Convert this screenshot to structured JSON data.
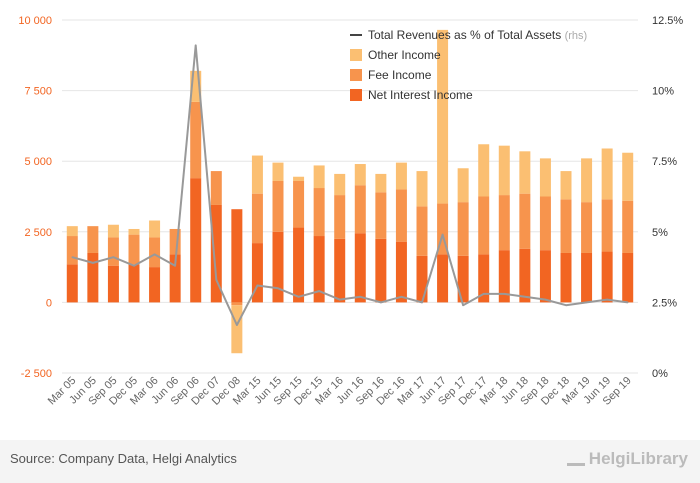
{
  "chart_data": {
    "type": "bar",
    "stacked": true,
    "categories": [
      "Mar 05",
      "Jun 05",
      "Sep 05",
      "Dec 05",
      "Mar 06",
      "Jun 06",
      "Sep 06",
      "Dec 07",
      "Dec 08",
      "Mar 15",
      "Jun 15",
      "Sep 15",
      "Dec 15",
      "Mar 16",
      "Jun 16",
      "Sep 16",
      "Dec 16",
      "Mar 17",
      "Jun 17",
      "Sep 17",
      "Dec 17",
      "Mar 18",
      "Jun 18",
      "Sep 18",
      "Dec 18",
      "Mar 19",
      "Jun 19",
      "Sep 19"
    ],
    "series": [
      {
        "name": "Net Interest Income",
        "color": "#f26522",
        "values": [
          1350,
          1750,
          1300,
          1350,
          1250,
          1700,
          4400,
          3450,
          3300,
          2100,
          2500,
          2650,
          2350,
          2250,
          2450,
          2250,
          2150,
          1650,
          1700,
          1650,
          1700,
          1850,
          1900,
          1850,
          1750,
          1750,
          1800,
          1750
        ]
      },
      {
        "name": "Fee Income",
        "color": "#f7944d",
        "values": [
          1000,
          950,
          1000,
          1050,
          1050,
          900,
          2700,
          1200,
          -100,
          1750,
          1800,
          1650,
          1700,
          1550,
          1700,
          1650,
          1850,
          1750,
          1800,
          1900,
          2050,
          1950,
          1950,
          1900,
          1900,
          1800,
          1850,
          1850
        ]
      },
      {
        "name": "Other Income",
        "color": "#fbbf72",
        "values": [
          350,
          0,
          450,
          200,
          600,
          0,
          1100,
          0,
          -1700,
          1350,
          650,
          150,
          800,
          750,
          750,
          650,
          950,
          1250,
          6150,
          1200,
          1850,
          1750,
          1500,
          1350,
          1000,
          1550,
          1800,
          1700
        ]
      }
    ],
    "line": {
      "name": "Total Revenues as % of Total Assets",
      "sub": "(rhs)",
      "color": "#444444",
      "values": [
        4.1,
        3.9,
        4.1,
        3.8,
        4.2,
        3.8,
        11.6,
        3.3,
        1.7,
        3.1,
        3.0,
        2.7,
        2.9,
        2.6,
        2.7,
        2.5,
        2.7,
        2.5,
        4.9,
        2.4,
        2.8,
        2.8,
        2.7,
        2.6,
        2.4,
        2.5,
        2.6,
        2.5
      ]
    },
    "yaxis_left": {
      "min": -2500,
      "max": 10000,
      "ticks": [
        -2500,
        0,
        2500,
        5000,
        7500,
        10000
      ],
      "tick_labels": [
        "-2 500",
        "0",
        "2 500",
        "5 000",
        "7 500",
        "10 000"
      ],
      "color": "#f26522"
    },
    "yaxis_right": {
      "min": 0,
      "max": 12.5,
      "ticks": [
        0,
        2.5,
        5,
        7.5,
        10,
        12.5
      ],
      "tick_labels": [
        "0%",
        "2.5%",
        "5%",
        "7.5%",
        "10%",
        "12.5%"
      ],
      "color": "#333333"
    },
    "grid": true,
    "legend_position": "top-right"
  },
  "footer": {
    "source": "Source: Company Data, Helgi Analytics",
    "brand": "HelgiLibrary"
  }
}
